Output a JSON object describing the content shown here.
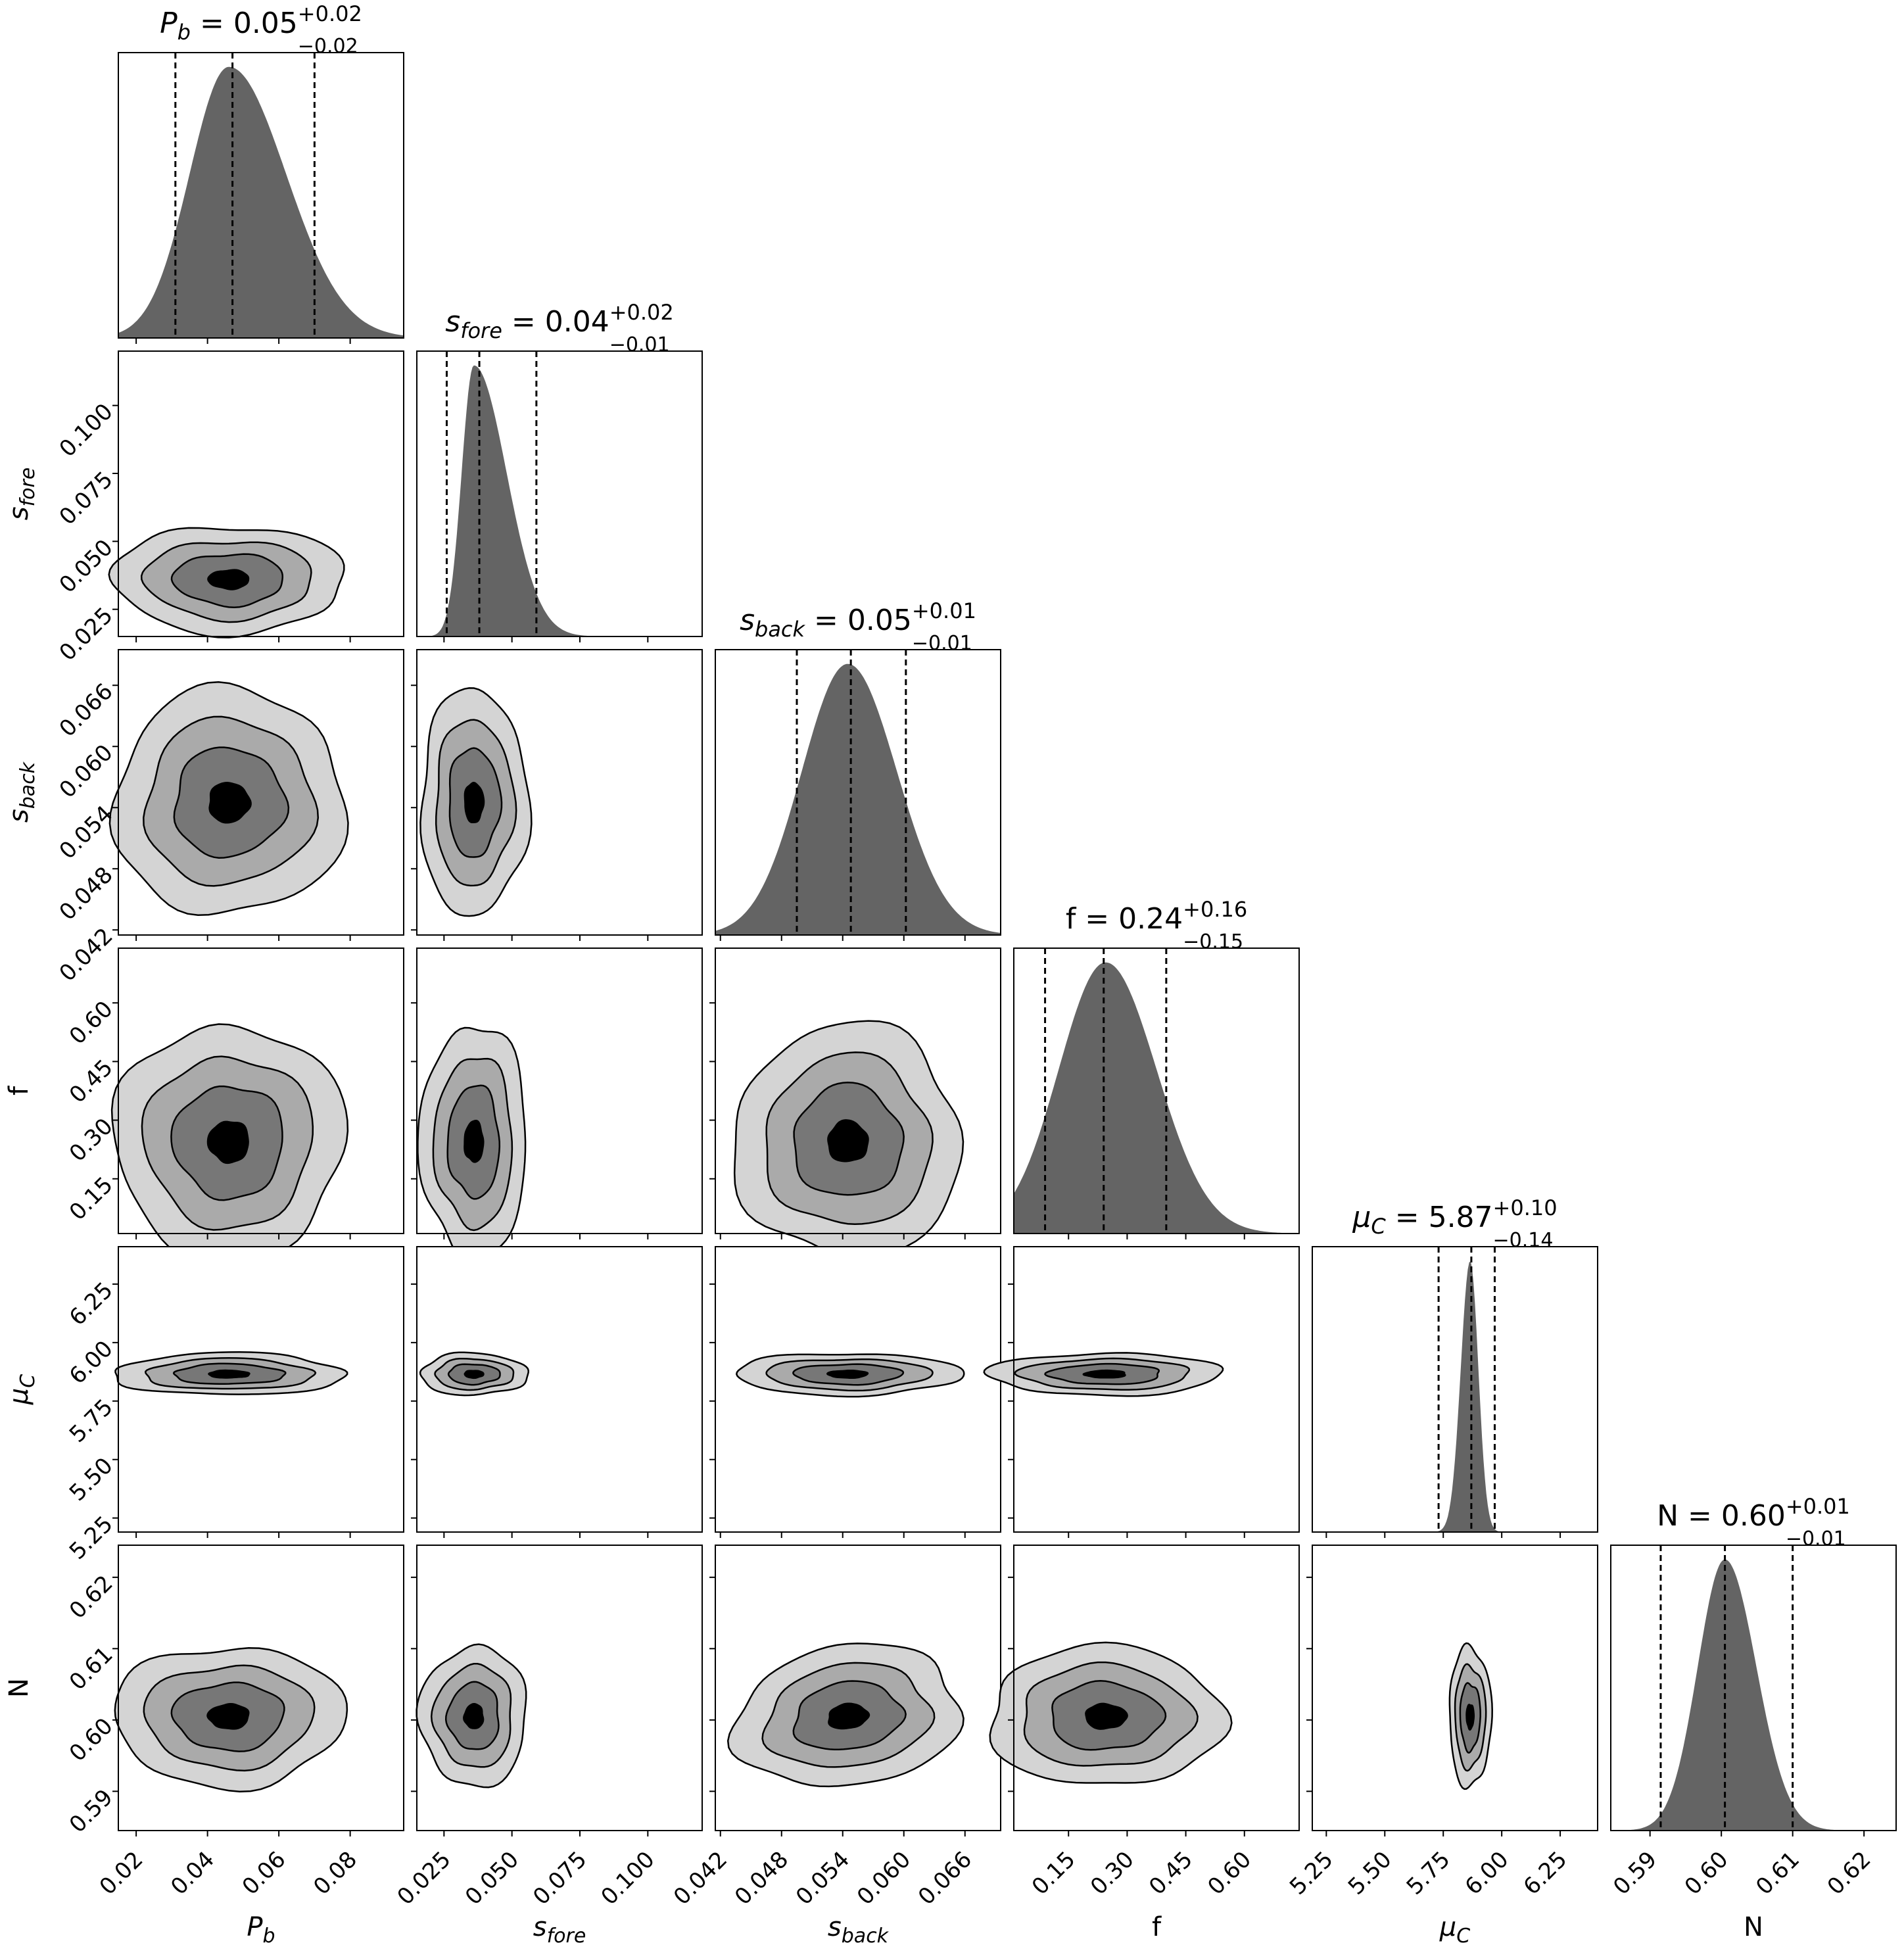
{
  "chart_data": {
    "type": "corner",
    "params": [
      {
        "id": "Pb",
        "sym": "P",
        "sub": "b",
        "italic": true,
        "title": {
          "value": "0.05",
          "plus": "+0.02",
          "minus": "−0.02"
        },
        "q": [
          0.031,
          0.047,
          0.07
        ],
        "range": [
          0.015,
          0.095
        ],
        "ticks": [
          {
            "v": 0.02,
            "t": "0.02"
          },
          {
            "v": 0.04,
            "t": "0.04"
          },
          {
            "v": 0.06,
            "t": "0.06"
          },
          {
            "v": 0.08,
            "t": "0.08"
          }
        ],
        "mode": 0.046,
        "sl": 0.011,
        "sr": 0.016
      },
      {
        "id": "sfore",
        "sym": "s",
        "sub": "fore",
        "italic": true,
        "title": {
          "value": "0.04",
          "plus": "+0.02",
          "minus": "−0.01"
        },
        "q": [
          0.026,
          0.038,
          0.059
        ],
        "range": [
          0.015,
          0.12
        ],
        "ticks": [
          {
            "v": 0.025,
            "t": "0.025"
          },
          {
            "v": 0.05,
            "t": "0.050"
          },
          {
            "v": 0.075,
            "t": "0.075"
          },
          {
            "v": 0.1,
            "t": "0.100"
          }
        ],
        "mode": 0.036,
        "sl": 0.0045,
        "sr": 0.012
      },
      {
        "id": "sback",
        "sym": "s",
        "sub": "back",
        "italic": true,
        "title": {
          "value": "0.05",
          "plus": "+0.01",
          "minus": "−0.01"
        },
        "q": [
          0.0495,
          0.0548,
          0.0602
        ],
        "range": [
          0.0415,
          0.0695
        ],
        "ticks": [
          {
            "v": 0.042,
            "t": "0.042"
          },
          {
            "v": 0.048,
            "t": "0.048"
          },
          {
            "v": 0.054,
            "t": "0.054"
          },
          {
            "v": 0.06,
            "t": "0.060"
          },
          {
            "v": 0.066,
            "t": "0.066"
          }
        ],
        "mode": 0.0545,
        "sl": 0.0045,
        "sr": 0.0048
      },
      {
        "id": "f",
        "sym": "f",
        "sub": "",
        "italic": false,
        "title": {
          "value": "0.24",
          "plus": "+0.16",
          "minus": "−0.15"
        },
        "q": [
          0.09,
          0.24,
          0.4
        ],
        "range": [
          0.01,
          0.74
        ],
        "ticks": [
          {
            "v": 0.15,
            "t": "0.15"
          },
          {
            "v": 0.3,
            "t": "0.30"
          },
          {
            "v": 0.45,
            "t": "0.45"
          },
          {
            "v": 0.6,
            "t": "0.60"
          }
        ],
        "mode": 0.245,
        "sl": 0.12,
        "sr": 0.13
      },
      {
        "id": "muC",
        "sym": "μ",
        "sub": "C",
        "italic": true,
        "title": {
          "value": "5.87",
          "plus": "+0.10",
          "minus": "−0.14"
        },
        "q": [
          5.73,
          5.87,
          5.97
        ],
        "range": [
          5.19,
          6.41
        ],
        "ticks": [
          {
            "v": 5.25,
            "t": "5.25"
          },
          {
            "v": 5.5,
            "t": "5.50"
          },
          {
            "v": 5.75,
            "t": "5.75"
          },
          {
            "v": 6.0,
            "t": "6.00"
          },
          {
            "v": 6.25,
            "t": "6.25"
          }
        ],
        "mode": 5.865,
        "sl": 0.04,
        "sr": 0.035
      },
      {
        "id": "N",
        "sym": "N",
        "sub": "",
        "italic": false,
        "title": {
          "value": "0.60",
          "plus": "+0.01",
          "minus": "−0.01"
        },
        "q": [
          0.5915,
          0.6005,
          0.61
        ],
        "range": [
          0.5845,
          0.6245
        ],
        "ticks": [
          {
            "v": 0.59,
            "t": "0.59"
          },
          {
            "v": 0.6,
            "t": "0.60"
          },
          {
            "v": 0.61,
            "t": "0.61"
          },
          {
            "v": 0.62,
            "t": "0.62"
          }
        ],
        "mode": 0.6005,
        "sl": 0.0038,
        "sr": 0.0044
      }
    ],
    "correlation": {
      "sback|Pb": -0.3,
      "N|sback": -0.25
    },
    "contour_fills": [
      "#d4d4d4",
      "#aaaaaa",
      "#777777",
      "#000000"
    ],
    "hist_fill": "#646464",
    "quantile_line": "dashed"
  }
}
